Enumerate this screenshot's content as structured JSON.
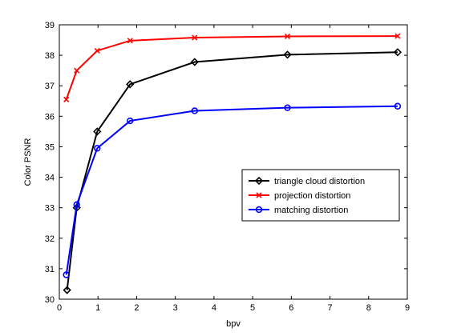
{
  "chart_data": {
    "type": "line",
    "title": "",
    "xlabel": "bpv",
    "ylabel": "Color PSNR",
    "xlim": [
      0,
      9
    ],
    "ylim": [
      30,
      39
    ],
    "xticks": [
      0,
      1,
      2,
      3,
      4,
      5,
      6,
      7,
      8,
      9
    ],
    "yticks": [
      30,
      31,
      32,
      33,
      34,
      35,
      36,
      37,
      38,
      39
    ],
    "grid": false,
    "legend_position": "center-right",
    "series": [
      {
        "name": "triangle cloud distortion",
        "color": "#000000",
        "marker": "diamond",
        "x": [
          0.2,
          0.45,
          0.98,
          1.83,
          3.5,
          5.9,
          8.75
        ],
        "y": [
          30.3,
          33.0,
          35.5,
          37.05,
          37.78,
          38.02,
          38.1
        ]
      },
      {
        "name": "projection distortion",
        "color": "#ff0000",
        "marker": "x",
        "x": [
          0.18,
          0.45,
          0.98,
          1.83,
          3.5,
          5.9,
          8.75
        ],
        "y": [
          36.55,
          37.5,
          38.15,
          38.48,
          38.58,
          38.62,
          38.63
        ]
      },
      {
        "name": "matching distortion",
        "color": "#0000ff",
        "marker": "circle",
        "x": [
          0.18,
          0.45,
          0.98,
          1.83,
          3.5,
          5.9,
          8.75
        ],
        "y": [
          30.8,
          33.1,
          34.95,
          35.85,
          36.18,
          36.28,
          36.33
        ]
      }
    ]
  }
}
